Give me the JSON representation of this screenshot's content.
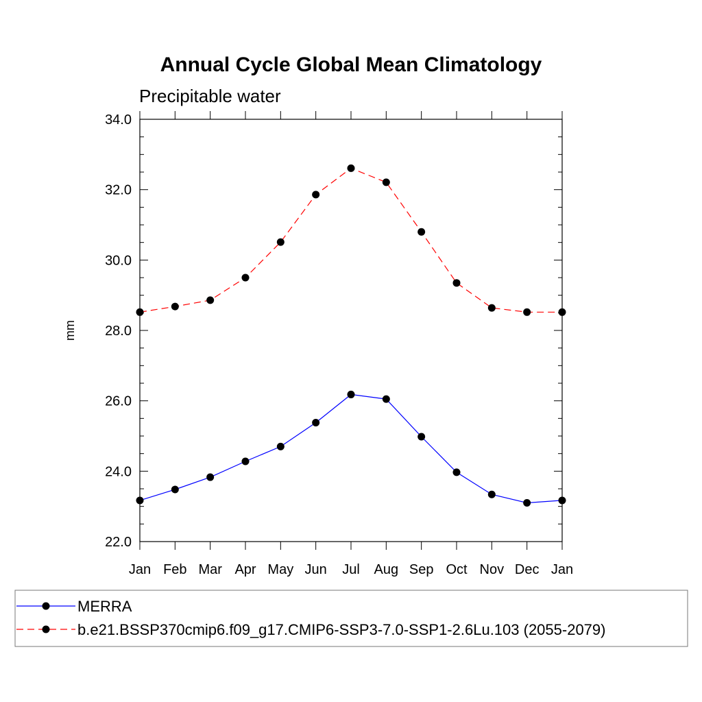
{
  "chart_data": {
    "type": "line",
    "title": "Annual Cycle Global Mean Climatology",
    "subtitle": "Precipitable water",
    "xlabel": "",
    "ylabel": "mm",
    "categories": [
      "Jan",
      "Feb",
      "Mar",
      "Apr",
      "May",
      "Jun",
      "Jul",
      "Aug",
      "Sep",
      "Oct",
      "Nov",
      "Dec",
      "Jan"
    ],
    "ylim": [
      22.0,
      34.0
    ],
    "yticks": [
      "22.0",
      "24.0",
      "26.0",
      "28.0",
      "30.0",
      "32.0",
      "34.0"
    ],
    "ytick_values": [
      22,
      24,
      26,
      28,
      30,
      32,
      34
    ],
    "grid": false,
    "legend_position": "bottom",
    "series": [
      {
        "name": "MERRA",
        "color": "#0000ff",
        "line_style": "solid",
        "marker": "filled-circle",
        "values": [
          23.17,
          23.48,
          23.83,
          24.28,
          24.7,
          25.38,
          26.18,
          26.05,
          24.98,
          23.97,
          23.34,
          23.1,
          23.17
        ]
      },
      {
        "name": "b.e21.BSSP370cmip6.f09_g17.CMIP6-SSP3-7.0-SSP1-2.6Lu.103 (2055-2079)",
        "color": "#ff0000",
        "line_style": "dashed",
        "marker": "filled-circle",
        "values": [
          28.52,
          28.68,
          28.86,
          29.5,
          30.51,
          31.86,
          32.61,
          32.21,
          30.8,
          29.35,
          28.64,
          28.52,
          28.52
        ]
      }
    ]
  }
}
